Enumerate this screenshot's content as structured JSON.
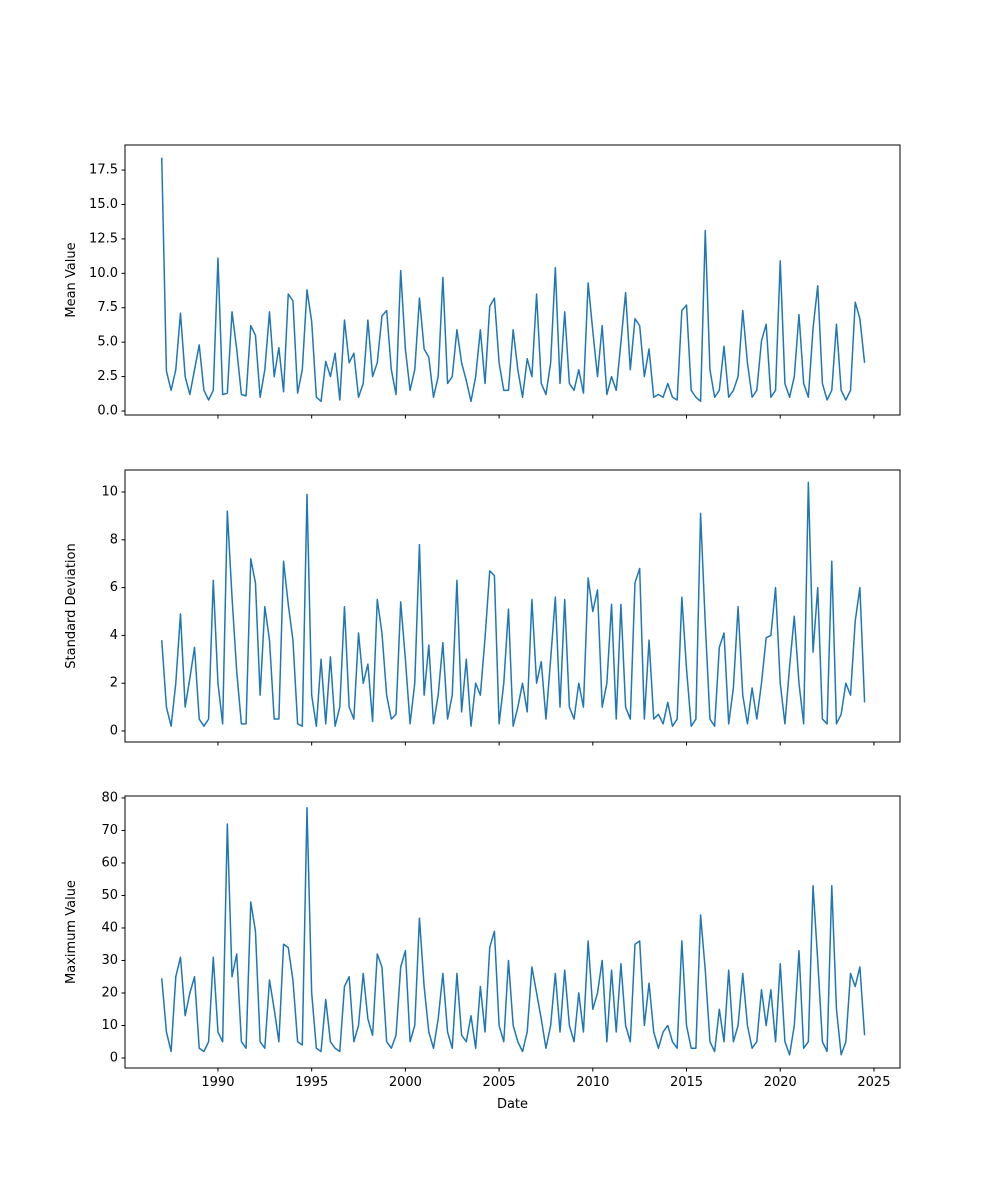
{
  "chart_data": [
    {
      "type": "line",
      "ylabel": "Mean Value",
      "x": [
        1987,
        1987.25,
        1987.5,
        1987.75,
        1988,
        1988.25,
        1988.5,
        1988.75,
        1989,
        1989.25,
        1989.5,
        1989.75,
        1990,
        1990.25,
        1990.5,
        1990.75,
        1991,
        1991.25,
        1991.5,
        1991.75,
        1992,
        1992.25,
        1992.5,
        1992.75,
        1993,
        1993.25,
        1993.5,
        1993.75,
        1994,
        1994.25,
        1994.5,
        1994.75,
        1995,
        1995.25,
        1995.5,
        1995.75,
        1996,
        1996.25,
        1996.5,
        1996.75,
        1997,
        1997.25,
        1997.5,
        1997.75,
        1998,
        1998.25,
        1998.5,
        1998.75,
        1999,
        1999.25,
        1999.5,
        1999.75,
        2000,
        2000.25,
        2000.5,
        2000.75,
        2001,
        2001.25,
        2001.5,
        2001.75,
        2002,
        2002.25,
        2002.5,
        2002.75,
        2003,
        2003.25,
        2003.5,
        2003.75,
        2004,
        2004.25,
        2004.5,
        2004.75,
        2005,
        2005.25,
        2005.5,
        2005.75,
        2006,
        2006.25,
        2006.5,
        2006.75,
        2007,
        2007.25,
        2007.5,
        2007.75,
        2008,
        2008.25,
        2008.5,
        2008.75,
        2009,
        2009.25,
        2009.5,
        2009.75,
        2010,
        2010.25,
        2010.5,
        2010.75,
        2011,
        2011.25,
        2011.5,
        2011.75,
        2012,
        2012.25,
        2012.5,
        2012.75,
        2013,
        2013.25,
        2013.5,
        2013.75,
        2014,
        2014.25,
        2014.5,
        2014.75,
        2015,
        2015.25,
        2015.5,
        2015.75,
        2016,
        2016.25,
        2016.5,
        2016.75,
        2017,
        2017.25,
        2017.5,
        2017.75,
        2018,
        2018.25,
        2018.5,
        2018.75,
        2019,
        2019.25,
        2019.5,
        2019.75,
        2020,
        2020.25,
        2020.5,
        2020.75,
        2021,
        2021.25,
        2021.5,
        2021.75,
        2022,
        2022.25,
        2022.5,
        2022.75,
        2023,
        2023.25,
        2023.5,
        2023.75,
        2024,
        2024.25,
        2024.5
      ],
      "series": [
        {
          "color": "#1f77b4",
          "values": [
            18.4,
            2.9,
            1.5,
            3.0,
            7.1,
            2.5,
            1.2,
            3.0,
            4.8,
            1.5,
            0.8,
            1.5,
            11.1,
            1.2,
            1.3,
            7.2,
            4.5,
            1.2,
            1.1,
            6.2,
            5.5,
            1.0,
            3.0,
            7.2,
            2.5,
            4.6,
            1.4,
            8.5,
            8.0,
            1.3,
            3.0,
            8.8,
            6.5,
            1.0,
            0.7,
            3.6,
            2.5,
            4.2,
            0.8,
            6.6,
            3.5,
            4.2,
            1.0,
            2.0,
            6.6,
            2.5,
            3.5,
            6.9,
            7.3,
            3.0,
            1.2,
            10.2,
            4.5,
            1.5,
            3.0,
            8.2,
            4.5,
            3.9,
            1.0,
            2.5,
            9.7,
            2.0,
            2.5,
            5.9,
            3.5,
            2.2,
            0.7,
            2.5,
            5.9,
            2.0,
            7.6,
            8.2,
            3.5,
            1.5,
            1.5,
            5.9,
            3.0,
            1.0,
            3.8,
            2.5,
            8.5,
            2.0,
            1.2,
            3.5,
            10.4,
            2.0,
            7.2,
            2.0,
            1.5,
            3.0,
            1.3,
            9.3,
            5.8,
            2.5,
            6.2,
            1.2,
            2.5,
            1.5,
            5.0,
            8.6,
            3.0,
            6.7,
            6.2,
            2.5,
            4.5,
            1.0,
            1.2,
            1.0,
            2.0,
            1.0,
            0.8,
            7.3,
            7.7,
            1.5,
            1.0,
            0.7,
            13.1,
            3.0,
            1.0,
            1.5,
            4.7,
            1.0,
            1.5,
            2.5,
            7.3,
            3.5,
            1.0,
            1.5,
            5.1,
            6.3,
            1.0,
            1.5,
            10.9,
            2.0,
            1.0,
            2.5,
            7.0,
            2.0,
            1.0,
            6.0,
            9.1,
            2.0,
            0.8,
            1.5,
            6.3,
            1.5,
            0.8,
            1.5,
            7.9,
            6.7,
            3.5
          ]
        }
      ],
      "xlim": [
        1985.04,
        2026.39
      ],
      "xticks": [
        1990,
        1995,
        2000,
        2005,
        2010,
        2015,
        2020,
        2025
      ],
      "ylim": [
        -0.29,
        19.32
      ],
      "yticks": [
        {
          "value": 0,
          "label": "0.0"
        },
        2.5,
        {
          "value": 5,
          "label": "5.0"
        },
        7.5,
        {
          "value": 10,
          "label": "10.0"
        },
        12.5,
        {
          "value": 15,
          "label": "15.0"
        },
        17.5
      ]
    },
    {
      "type": "line",
      "ylabel": "Standard Deviation",
      "x": [
        1987,
        1987.25,
        1987.5,
        1987.75,
        1988,
        1988.25,
        1988.5,
        1988.75,
        1989,
        1989.25,
        1989.5,
        1989.75,
        1990,
        1990.25,
        1990.5,
        1990.75,
        1991,
        1991.25,
        1991.5,
        1991.75,
        1992,
        1992.25,
        1992.5,
        1992.75,
        1993,
        1993.25,
        1993.5,
        1993.75,
        1994,
        1994.25,
        1994.5,
        1994.75,
        1995,
        1995.25,
        1995.5,
        1995.75,
        1996,
        1996.25,
        1996.5,
        1996.75,
        1997,
        1997.25,
        1997.5,
        1997.75,
        1998,
        1998.25,
        1998.5,
        1998.75,
        1999,
        1999.25,
        1999.5,
        1999.75,
        2000,
        2000.25,
        2000.5,
        2000.75,
        2001,
        2001.25,
        2001.5,
        2001.75,
        2002,
        2002.25,
        2002.5,
        2002.75,
        2003,
        2003.25,
        2003.5,
        2003.75,
        2004,
        2004.25,
        2004.5,
        2004.75,
        2005,
        2005.25,
        2005.5,
        2005.75,
        2006,
        2006.25,
        2006.5,
        2006.75,
        2007,
        2007.25,
        2007.5,
        2007.75,
        2008,
        2008.25,
        2008.5,
        2008.75,
        2009,
        2009.25,
        2009.5,
        2009.75,
        2010,
        2010.25,
        2010.5,
        2010.75,
        2011,
        2011.25,
        2011.5,
        2011.75,
        2012,
        2012.25,
        2012.5,
        2012.75,
        2013,
        2013.25,
        2013.5,
        2013.75,
        2014,
        2014.25,
        2014.5,
        2014.75,
        2015,
        2015.25,
        2015.5,
        2015.75,
        2016,
        2016.25,
        2016.5,
        2016.75,
        2017,
        2017.25,
        2017.5,
        2017.75,
        2018,
        2018.25,
        2018.5,
        2018.75,
        2019,
        2019.25,
        2019.5,
        2019.75,
        2020,
        2020.25,
        2020.5,
        2020.75,
        2021,
        2021.25,
        2021.5,
        2021.75,
        2022,
        2022.25,
        2022.5,
        2022.75,
        2023,
        2023.25,
        2023.5,
        2023.75,
        2024,
        2024.25,
        2024.5
      ],
      "series": [
        {
          "color": "#1f77b4",
          "values": [
            3.8,
            1.0,
            0.2,
            2.0,
            4.9,
            1.0,
            2.2,
            3.5,
            0.5,
            0.2,
            0.5,
            6.3,
            2.0,
            0.3,
            9.2,
            5.6,
            2.5,
            0.3,
            0.3,
            7.2,
            6.2,
            1.5,
            5.2,
            3.8,
            0.5,
            0.5,
            7.1,
            5.3,
            3.8,
            0.3,
            0.2,
            9.9,
            1.5,
            0.2,
            3.0,
            0.3,
            3.1,
            0.2,
            1.0,
            5.2,
            1.0,
            0.5,
            4.1,
            2.0,
            2.8,
            0.4,
            5.5,
            4.1,
            1.5,
            0.5,
            0.7,
            5.4,
            3.0,
            0.3,
            2.0,
            7.8,
            1.5,
            3.6,
            0.3,
            1.5,
            3.7,
            0.5,
            1.5,
            6.3,
            0.8,
            3.0,
            0.2,
            2.0,
            1.5,
            3.9,
            6.7,
            6.5,
            0.3,
            2.0,
            5.1,
            0.2,
            1.0,
            2.0,
            0.8,
            5.5,
            2.0,
            2.9,
            0.5,
            3.0,
            5.6,
            1.0,
            5.5,
            1.0,
            0.5,
            2.0,
            1.0,
            6.4,
            5.0,
            5.9,
            1.0,
            2.0,
            5.3,
            0.5,
            5.3,
            1.0,
            0.5,
            6.2,
            6.8,
            0.5,
            3.8,
            0.5,
            0.7,
            0.3,
            1.2,
            0.2,
            0.5,
            5.6,
            2.6,
            0.2,
            0.5,
            9.1,
            4.5,
            0.5,
            0.2,
            3.5,
            4.1,
            0.3,
            1.8,
            5.2,
            1.5,
            0.3,
            1.8,
            0.5,
            2.0,
            3.9,
            4.0,
            6.0,
            2.0,
            0.3,
            2.7,
            4.8,
            2.0,
            0.3,
            10.4,
            3.3,
            6.0,
            0.5,
            0.3,
            7.1,
            0.3,
            0.7,
            2.0,
            1.5,
            4.6,
            6.0,
            1.2
          ]
        }
      ],
      "xlim": [
        1985.04,
        2026.39
      ],
      "xticks": [
        1990,
        1995,
        2000,
        2005,
        2010,
        2015,
        2020,
        2025
      ],
      "ylim": [
        -0.46,
        10.92
      ],
      "yticks": [
        0,
        2,
        4,
        6,
        8,
        10
      ]
    },
    {
      "type": "line",
      "ylabel": "Maximum Value",
      "xlabel": "Date",
      "x": [
        1987,
        1987.25,
        1987.5,
        1987.75,
        1988,
        1988.25,
        1988.5,
        1988.75,
        1989,
        1989.25,
        1989.5,
        1989.75,
        1990,
        1990.25,
        1990.5,
        1990.75,
        1991,
        1991.25,
        1991.5,
        1991.75,
        1992,
        1992.25,
        1992.5,
        1992.75,
        1993,
        1993.25,
        1993.5,
        1993.75,
        1994,
        1994.25,
        1994.5,
        1994.75,
        1995,
        1995.25,
        1995.5,
        1995.75,
        1996,
        1996.25,
        1996.5,
        1996.75,
        1997,
        1997.25,
        1997.5,
        1997.75,
        1998,
        1998.25,
        1998.5,
        1998.75,
        1999,
        1999.25,
        1999.5,
        1999.75,
        2000,
        2000.25,
        2000.5,
        2000.75,
        2001,
        2001.25,
        2001.5,
        2001.75,
        2002,
        2002.25,
        2002.5,
        2002.75,
        2003,
        2003.25,
        2003.5,
        2003.75,
        2004,
        2004.25,
        2004.5,
        2004.75,
        2005,
        2005.25,
        2005.5,
        2005.75,
        2006,
        2006.25,
        2006.5,
        2006.75,
        2007,
        2007.25,
        2007.5,
        2007.75,
        2008,
        2008.25,
        2008.5,
        2008.75,
        2009,
        2009.25,
        2009.5,
        2009.75,
        2010,
        2010.25,
        2010.5,
        2010.75,
        2011,
        2011.25,
        2011.5,
        2011.75,
        2012,
        2012.25,
        2012.5,
        2012.75,
        2013,
        2013.25,
        2013.5,
        2013.75,
        2014,
        2014.25,
        2014.5,
        2014.75,
        2015,
        2015.25,
        2015.5,
        2015.75,
        2016,
        2016.25,
        2016.5,
        2016.75,
        2017,
        2017.25,
        2017.5,
        2017.75,
        2018,
        2018.25,
        2018.5,
        2018.75,
        2019,
        2019.25,
        2019.5,
        2019.75,
        2020,
        2020.25,
        2020.5,
        2020.75,
        2021,
        2021.25,
        2021.5,
        2021.75,
        2022,
        2022.25,
        2022.5,
        2022.75,
        2023,
        2023.25,
        2023.5,
        2023.75,
        2024,
        2024.25,
        2024.5
      ],
      "series": [
        {
          "color": "#1f77b4",
          "values": [
            24.5,
            8,
            2,
            25,
            31,
            13,
            20,
            25,
            3,
            2,
            5,
            31,
            8,
            5,
            72,
            25,
            32,
            5,
            3,
            48,
            39,
            5,
            3,
            24,
            15,
            5,
            35,
            34,
            24,
            5,
            4,
            77,
            20,
            3,
            2,
            18,
            5,
            3,
            2,
            22,
            25,
            5,
            10,
            26,
            12,
            7,
            32,
            28,
            5,
            3,
            7,
            28,
            33,
            5,
            10,
            43,
            22,
            8,
            3,
            12,
            26,
            8,
            3,
            26,
            7,
            5,
            13,
            3,
            22,
            8,
            34,
            39,
            10,
            5,
            30,
            10,
            5,
            2,
            8,
            28,
            20,
            12,
            3,
            10,
            26,
            8,
            27,
            10,
            5,
            20,
            8,
            36,
            15,
            20,
            30,
            5,
            27,
            8,
            29,
            10,
            5,
            35,
            36,
            10,
            23,
            8,
            3,
            8,
            10,
            5,
            3,
            36,
            10,
            3,
            3,
            44,
            27,
            5,
            2,
            15,
            5,
            27,
            5,
            10,
            26,
            10,
            3,
            5,
            21,
            10,
            21,
            5,
            29,
            5,
            1,
            10,
            33,
            3,
            5,
            53,
            30,
            5,
            2,
            53,
            15,
            1,
            5,
            26,
            22,
            28,
            7
          ]
        }
      ],
      "xlim": [
        1985.04,
        2026.39
      ],
      "xticks": [
        1990,
        1995,
        2000,
        2005,
        2010,
        2015,
        2020,
        2025
      ],
      "ylim": [
        -3.08,
        80.6
      ],
      "yticks": [
        0,
        10,
        20,
        30,
        40,
        50,
        60,
        70,
        80
      ]
    }
  ]
}
